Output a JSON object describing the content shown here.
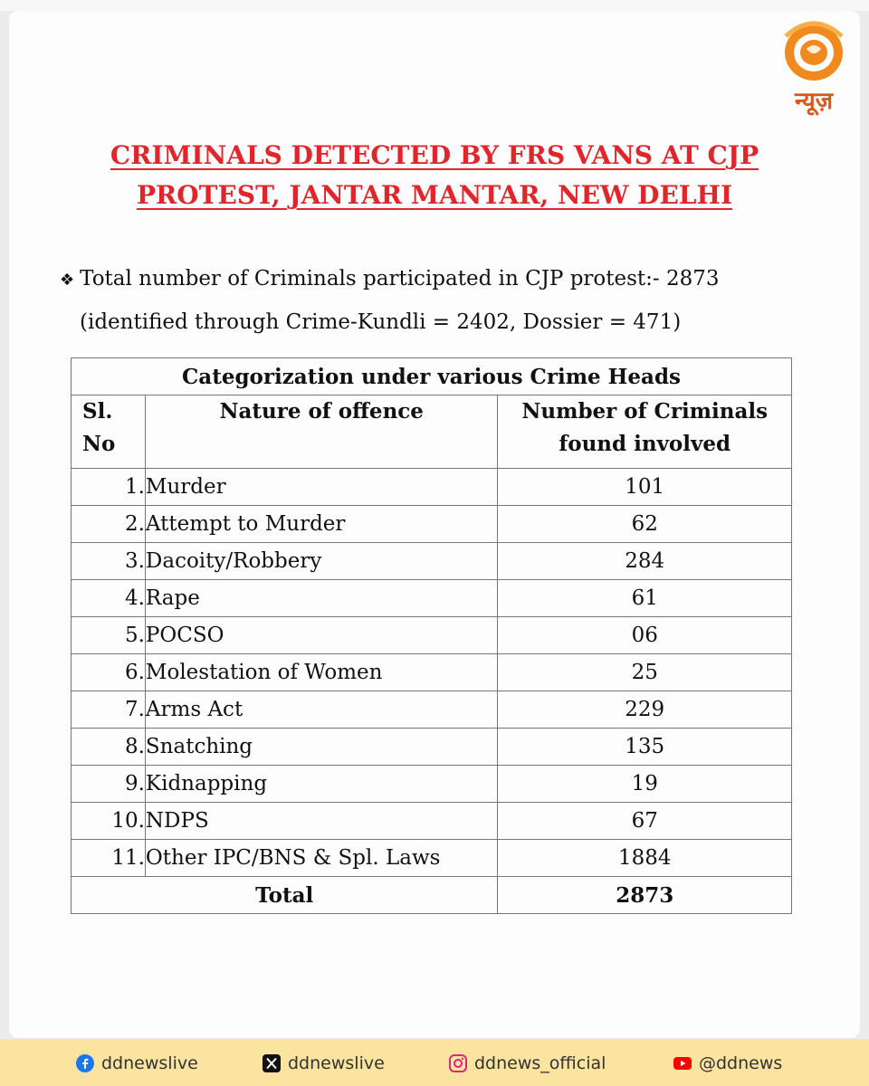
{
  "logo": {
    "text": "न्यूज़",
    "accent": "#f08a1e",
    "text_color": "#d8571d"
  },
  "title": {
    "line1": "CRIMINALS DETECTED BY FRS VANS AT CJP",
    "line2": "PROTEST, JANTAR MANTAR, NEW DELHI",
    "color": "#e0262b"
  },
  "intro": {
    "bullet_icon": "diamond-bullet-icon",
    "line1": "Total number of Criminals participated in CJP protest:- 2873",
    "line2": "(identified through Crime-Kundli = 2402, Dossier = 471)"
  },
  "table": {
    "caption": "Categorization under various Crime Heads",
    "headers": {
      "sl_line1": "Sl.",
      "sl_line2": "No",
      "offence": "Nature of offence",
      "count_line1": "Number of Criminals",
      "count_line2": "found involved"
    },
    "rows": [
      {
        "sl": "1.",
        "offence": "Murder",
        "count": "101"
      },
      {
        "sl": "2.",
        "offence": "Attempt to Murder",
        "count": "62"
      },
      {
        "sl": "3.",
        "offence": "Dacoity/Robbery",
        "count": "284"
      },
      {
        "sl": "4.",
        "offence": "Rape",
        "count": "61"
      },
      {
        "sl": "5.",
        "offence": "POCSO",
        "count": "06"
      },
      {
        "sl": "6.",
        "offence": "Molestation of Women",
        "count": "25"
      },
      {
        "sl": "7.",
        "offence": "Arms Act",
        "count": "229"
      },
      {
        "sl": "8.",
        "offence": "Snatching",
        "count": "135"
      },
      {
        "sl": "9.",
        "offence": "Kidnapping",
        "count": "19"
      },
      {
        "sl": "10.",
        "offence": "NDPS",
        "count": "67"
      },
      {
        "sl": "11.",
        "offence": "Other IPC/BNS & Spl. Laws",
        "count": "1884"
      }
    ],
    "total_label": "Total",
    "total_value": "2873"
  },
  "footer": {
    "background": "#fbe3a0",
    "facebook": {
      "icon": "facebook-icon",
      "handle": "ddnewslive",
      "color": "#1877f2"
    },
    "x": {
      "icon": "x-icon",
      "handle": "ddnewslive",
      "color": "#111111"
    },
    "instagram": {
      "icon": "instagram-icon",
      "handle": "ddnews_official",
      "color": "#d62976"
    },
    "youtube": {
      "icon": "youtube-icon",
      "handle": "@ddnews",
      "color": "#ff0000"
    }
  }
}
